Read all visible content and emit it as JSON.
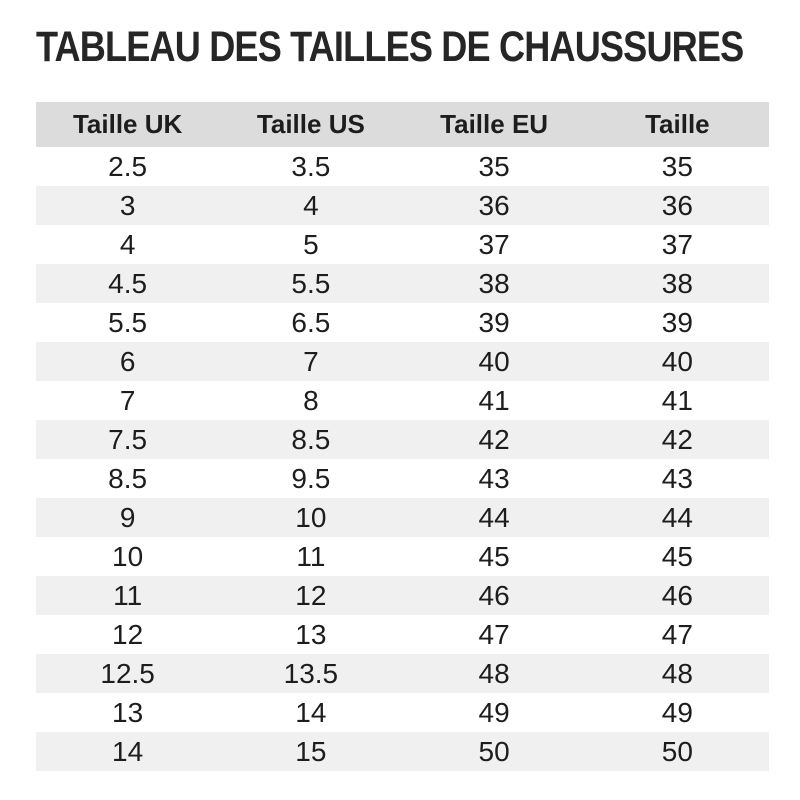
{
  "title": "TABLEAU DES TAILLES DE CHAUSSURES",
  "table": {
    "columns": [
      "Taille UK",
      "Taille US",
      "Taille EU",
      "Taille"
    ],
    "rows": [
      [
        "2.5",
        "3.5",
        "35",
        "35"
      ],
      [
        "3",
        "4",
        "36",
        "36"
      ],
      [
        "4",
        "5",
        "37",
        "37"
      ],
      [
        "4.5",
        "5.5",
        "38",
        "38"
      ],
      [
        "5.5",
        "6.5",
        "39",
        "39"
      ],
      [
        "6",
        "7",
        "40",
        "40"
      ],
      [
        "7",
        "8",
        "41",
        "41"
      ],
      [
        "7.5",
        "8.5",
        "42",
        "42"
      ],
      [
        "8.5",
        "9.5",
        "43",
        "43"
      ],
      [
        "9",
        "10",
        "44",
        "44"
      ],
      [
        "10",
        "11",
        "45",
        "45"
      ],
      [
        "11",
        "12",
        "46",
        "46"
      ],
      [
        "12",
        "13",
        "47",
        "47"
      ],
      [
        "12.5",
        "13.5",
        "48",
        "48"
      ],
      [
        "13",
        "14",
        "49",
        "49"
      ],
      [
        "14",
        "15",
        "50",
        "50"
      ]
    ]
  },
  "colors": {
    "header_bg": "#dcdcdc",
    "stripe_bg": "#f0f0f0",
    "text": "#1d1d1d",
    "title": "#262626"
  }
}
